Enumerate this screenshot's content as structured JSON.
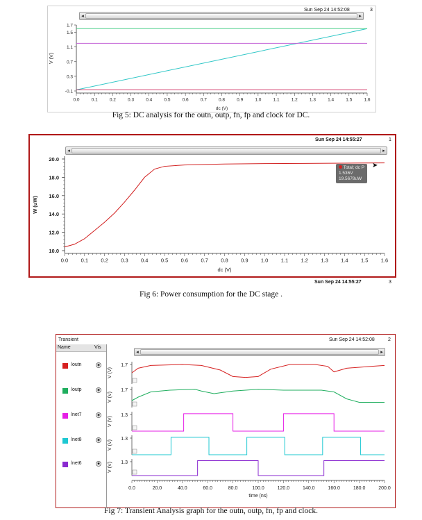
{
  "fig5": {
    "timestamp": "Sun Sep 24 14:52:08",
    "window_number": "3",
    "ylabel": "V (V)",
    "xlabel": "dc (V)",
    "yticks": [
      "1.7",
      "1.5",
      "1.1",
      "0.7",
      "0.3",
      "-0.1"
    ],
    "xticks": [
      "0.0",
      "0.1",
      "0.2",
      "0.3",
      "0.4",
      "0.5",
      "0.6",
      "0.7",
      "0.8",
      "0.9",
      "1.0",
      "1.1",
      "1.2",
      "1.3",
      "1.4",
      "1.5",
      "1.6"
    ],
    "caption": "Fig 5: DC analysis for the outn, outp, fn, fp and clock for DC."
  },
  "fig6": {
    "timestamp": "Sun Sep 24 14:55:27",
    "window_number": "1",
    "ylabel": "W (uW)",
    "xlabel": "dc (V)",
    "yticks": [
      "20.0",
      "18.0",
      "16.0",
      "14.0",
      "12.0",
      "10.0"
    ],
    "xticks": [
      "0.0",
      "0.1",
      "0.2",
      "0.3",
      "0.4",
      "0.5",
      "0.6",
      "0.7",
      "0.8",
      "0.9",
      "1.0",
      "1.1",
      "1.2",
      "1.3",
      "1.4",
      "1.5",
      "1.6"
    ],
    "tooltip": {
      "line1": "Total; dc P",
      "line2": "1.536V",
      "line3": "19.5678uW"
    },
    "footer_timestamp": "Sun Sep 24 14:55:27",
    "footer_number": "3",
    "caption": "Fig 6: Power consumption for the DC stage ."
  },
  "fig7": {
    "panel_title": "Transient",
    "timestamp": "Sun Sep 24 14:52:08",
    "window_number": "2",
    "col_name": "Name",
    "col_vis": "Vis",
    "signals": [
      {
        "name": "/outn",
        "color": "#d62020",
        "ytick": "1.7",
        "ylabel": "V (V)"
      },
      {
        "name": "/outp",
        "color": "#1fae5e",
        "ytick": "1.7",
        "ylabel": "V (V)"
      },
      {
        "name": "/net7",
        "color": "#e61ee6",
        "ytick": "1.3",
        "ylabel": "V (V)"
      },
      {
        "name": "/net8",
        "color": "#1ec8d2",
        "ytick": "1.3",
        "ylabel": "V (V)"
      },
      {
        "name": "/net6",
        "color": "#8a2ad0",
        "ytick": "1.3",
        "ylabel": "V (V)"
      }
    ],
    "xlabel": "time (ns)",
    "xticks": [
      "0.0",
      "20.0",
      "40.0",
      "60.0",
      "80.0",
      "100.0",
      "120.0",
      "140.0",
      "160.0",
      "180.0",
      "200.0"
    ],
    "caption": "Fig 7: Transient Analysis graph for the outn, outp, fn, fp and clock."
  },
  "colors": {
    "frame_red": "#b01818",
    "grid_line": "#555555"
  },
  "chart_data": [
    {
      "type": "line",
      "title": "",
      "xlabel": "dc (V)",
      "ylabel": "V (V)",
      "xlim": [
        0,
        1.6
      ],
      "ylim": [
        -0.1,
        1.7
      ],
      "x": [
        0.0,
        1.6
      ],
      "series": [
        {
          "color": "#2fc7c7",
          "x": [
            0.0,
            1.6
          ],
          "values": [
            -0.07,
            1.6
          ]
        },
        {
          "color": "#4ccf8a",
          "x": [
            0.0,
            1.6
          ],
          "values": [
            1.6,
            1.6
          ]
        },
        {
          "color": "#c35fd6",
          "x": [
            0.0,
            1.6
          ],
          "values": [
            1.2,
            1.2
          ]
        },
        {
          "color": "#d23a6a",
          "x": [
            0.0,
            1.6
          ],
          "values": [
            -0.07,
            -0.07
          ]
        }
      ]
    },
    {
      "type": "line",
      "title": "",
      "xlabel": "dc (V)",
      "ylabel": "W (uW)",
      "xlim": [
        0,
        1.6
      ],
      "ylim": [
        10,
        20
      ],
      "series": [
        {
          "color": "#d22020",
          "x": [
            0.0,
            0.05,
            0.1,
            0.15,
            0.2,
            0.25,
            0.3,
            0.35,
            0.4,
            0.45,
            0.5,
            0.6,
            0.7,
            0.8,
            1.0,
            1.2,
            1.4,
            1.6
          ],
          "values": [
            10.4,
            10.7,
            11.3,
            12.2,
            13.1,
            14.1,
            15.3,
            16.6,
            18.0,
            18.9,
            19.2,
            19.35,
            19.4,
            19.45,
            19.5,
            19.52,
            19.55,
            19.57
          ]
        }
      ]
    },
    {
      "type": "line",
      "title": "",
      "xlabel": "time (ns)",
      "ylabel": "V (V)",
      "xlim": [
        0,
        200
      ],
      "series": [
        {
          "name": "/outn",
          "color": "#d62020",
          "x": [
            0,
            5,
            15,
            40,
            55,
            70,
            80,
            90,
            100,
            110,
            125,
            145,
            155,
            160,
            170,
            190,
            200
          ],
          "values": [
            1.2,
            1.45,
            1.6,
            1.65,
            1.6,
            1.35,
            1.0,
            0.95,
            1.0,
            1.4,
            1.65,
            1.65,
            1.55,
            1.25,
            1.45,
            1.55,
            1.6
          ]
        },
        {
          "name": "/outp",
          "color": "#1fae5e",
          "x": [
            0,
            5,
            15,
            30,
            50,
            55,
            65,
            80,
            100,
            120,
            150,
            160,
            170,
            180,
            190,
            200
          ],
          "values": [
            1.0,
            1.2,
            1.5,
            1.6,
            1.65,
            1.55,
            1.4,
            1.55,
            1.65,
            1.6,
            1.6,
            1.5,
            1.1,
            0.9,
            0.9,
            0.9
          ]
        },
        {
          "name": "/net7",
          "color": "#e61ee6",
          "x": [
            0,
            41,
            41,
            80,
            80,
            120,
            120,
            160,
            160,
            200
          ],
          "values": [
            0,
            0,
            1.3,
            1.3,
            0,
            0,
            1.3,
            1.3,
            0,
            0
          ]
        },
        {
          "name": "/net8",
          "color": "#1ec8d2",
          "x": [
            0,
            31,
            31,
            61,
            61,
            91,
            91,
            121,
            121,
            151,
            151,
            181,
            181,
            200
          ],
          "values": [
            0,
            0,
            1.3,
            1.3,
            0,
            0,
            1.3,
            1.3,
            0,
            0,
            1.3,
            1.3,
            0,
            0
          ]
        },
        {
          "name": "/net6",
          "color": "#8a2ad0",
          "x": [
            0,
            52,
            52,
            100,
            100,
            152,
            152,
            200
          ],
          "values": [
            0,
            0,
            1.3,
            1.3,
            0,
            0,
            1.3,
            1.3
          ]
        }
      ]
    }
  ]
}
